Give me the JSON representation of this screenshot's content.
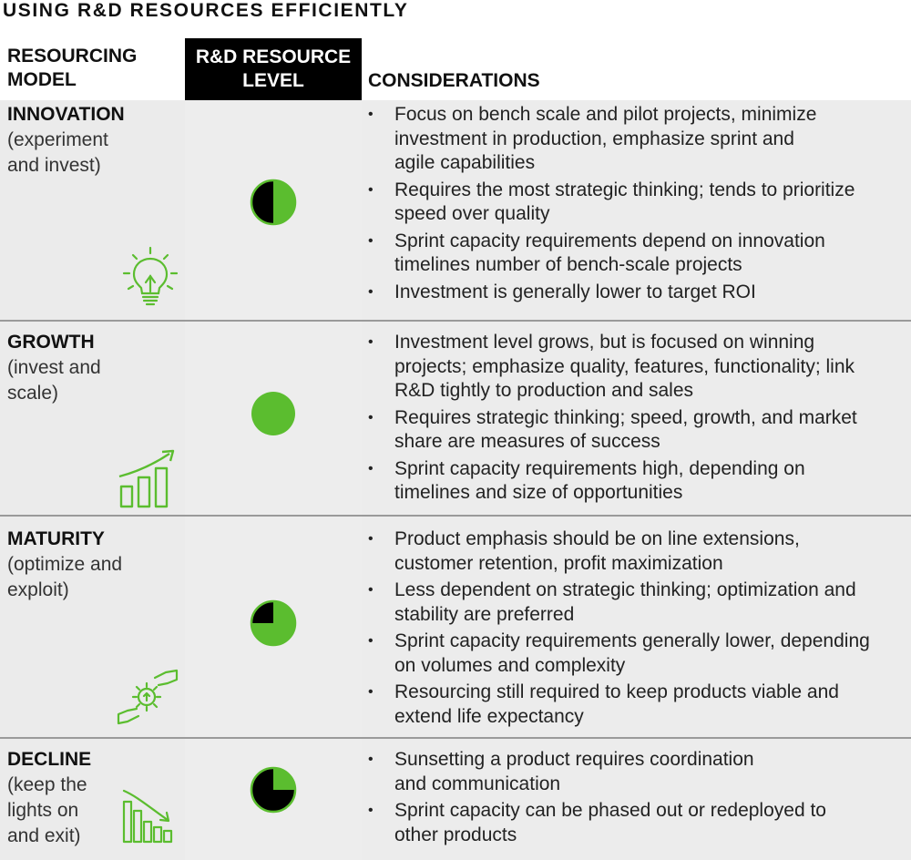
{
  "title": "USING R&D RESOURCES EFFICIENTLY",
  "headers": {
    "model": [
      "RESOURCING",
      "MODEL"
    ],
    "level": [
      "R&D RESOURCE",
      "LEVEL"
    ],
    "considerations": "CONSIDERATIONS"
  },
  "colors": {
    "accent": "#5bbd2f",
    "column": "#000000",
    "row_bg": "#ececec"
  },
  "rows": [
    {
      "name": "INNOVATION",
      "sub": [
        "(experiment",
        "and invest)"
      ],
      "icon": "lightbulb-icon",
      "level_fraction": 0.5,
      "bullets": [
        [
          "Focus on bench scale and pilot projects, minimize",
          "investment in production, emphasize sprint and",
          "agile capabilities"
        ],
        [
          "Requires the most strategic thinking; tends to prioritize",
          "speed over quality"
        ],
        [
          "Sprint capacity requirements depend on innovation",
          "timelines number of bench-scale projects"
        ],
        [
          "Investment is generally lower to target ROI"
        ]
      ]
    },
    {
      "name": "GROWTH",
      "sub": [
        "(invest and",
        "scale)"
      ],
      "icon": "growth-chart-icon",
      "level_fraction": 1.0,
      "bullets": [
        [
          "Investment level grows, but is focused on winning",
          "projects; emphasize quality, features, functionality; link",
          "R&D tightly to production and sales"
        ],
        [
          "Requires strategic thinking; speed, growth, and market",
          "share are measures of success"
        ],
        [
          "Sprint capacity requirements high, depending on",
          "timelines and size of opportunities"
        ]
      ]
    },
    {
      "name": "MATURITY",
      "sub": [
        "(optimize and",
        "exploit)"
      ],
      "icon": "hands-gear-icon",
      "level_fraction": 0.75,
      "bullets": [
        [
          "Product emphasis should be on line extensions,",
          "customer retention, profit maximization"
        ],
        [
          "Less dependent on strategic thinking; optimization and",
          "stability are preferred"
        ],
        [
          "Sprint capacity requirements generally lower, depending",
          "on volumes and complexity"
        ],
        [
          "Resourcing still required to keep products viable and",
          "extend life expectancy"
        ]
      ]
    },
    {
      "name": "DECLINE",
      "sub": [
        "(keep the",
        "lights on",
        "and exit)"
      ],
      "icon": "declining-chart-icon",
      "level_fraction": 0.25,
      "bullets": [
        [
          "Sunsetting a product requires coordination",
          "and communication"
        ],
        [
          "Sprint capacity can be phased out or redeployed to",
          "other products"
        ]
      ]
    }
  ]
}
